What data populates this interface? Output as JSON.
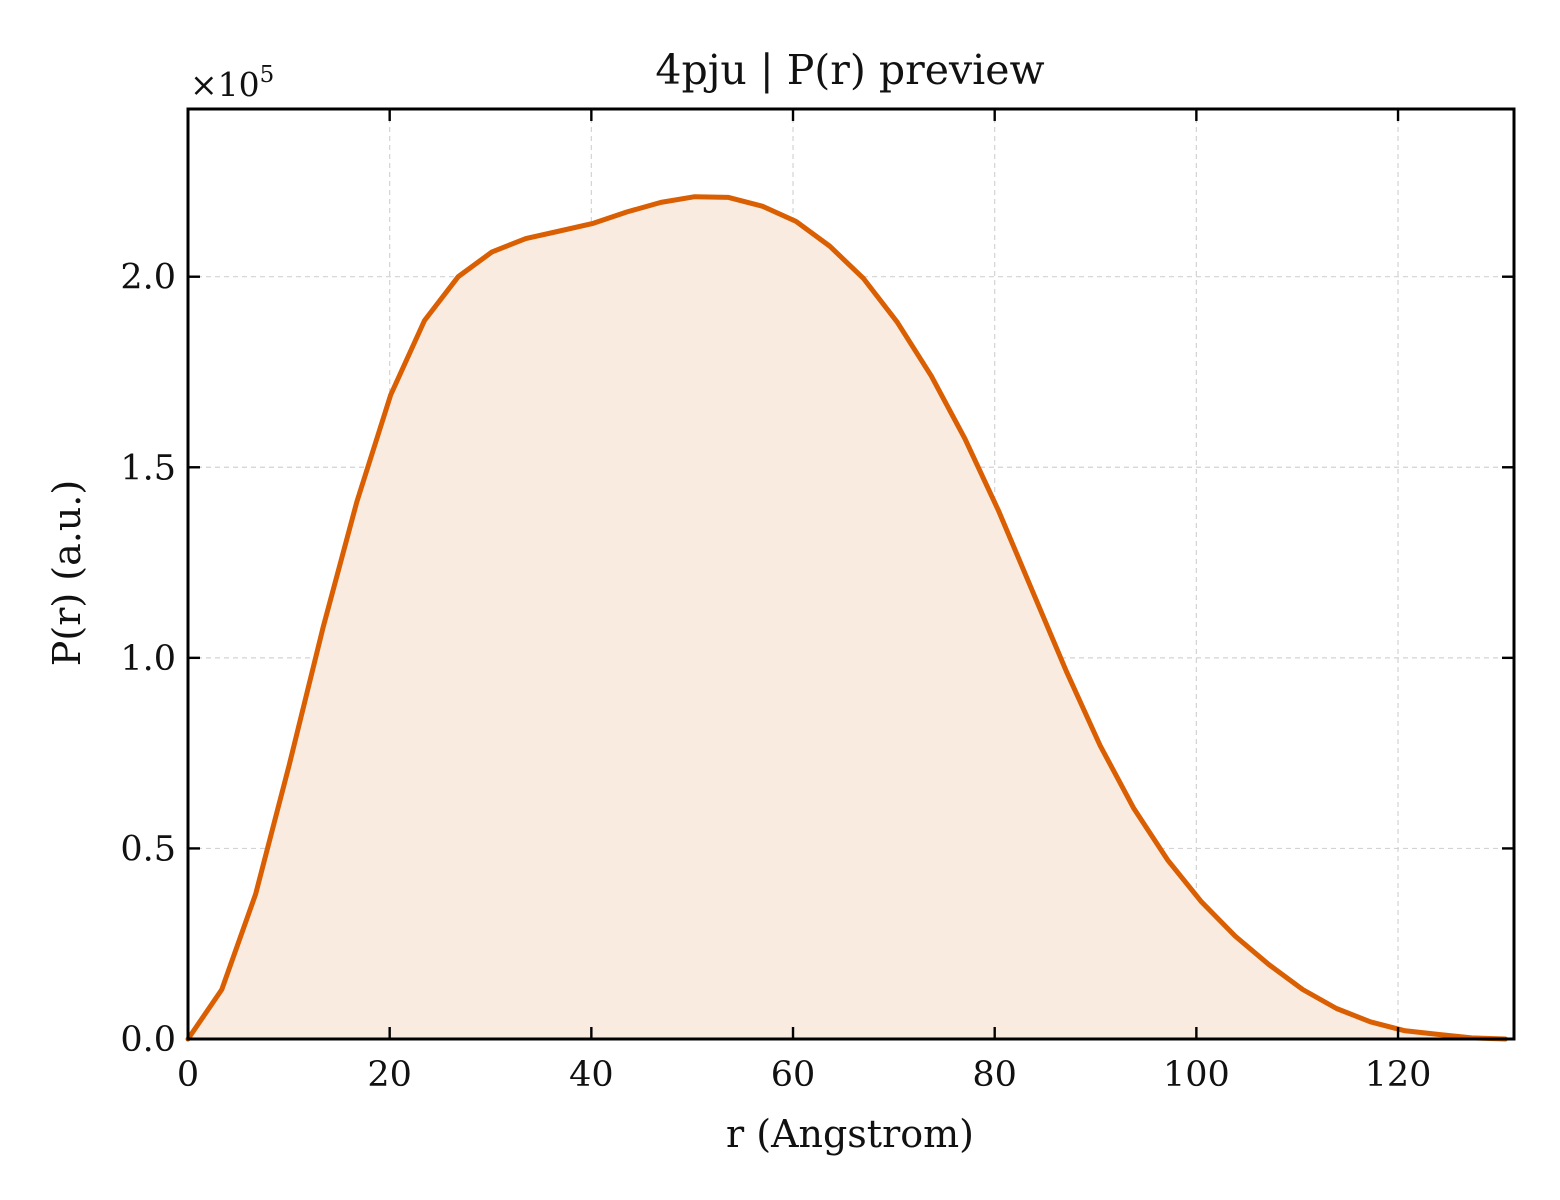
{
  "chart_data": {
    "type": "area",
    "title": "4pju | P(r) preview",
    "xlabel": "r (Angstrom)",
    "ylabel": "P(r) (a.u.)",
    "y_multiplier_label": "×10",
    "y_multiplier_exponent": "5",
    "xlim": [
      0,
      131.5
    ],
    "ylim": [
      0,
      2.44
    ],
    "y_scale_factor": 100000,
    "x_ticks": [
      0,
      20,
      40,
      60,
      80,
      100,
      120
    ],
    "y_ticks": [
      0.0,
      0.5,
      1.0,
      1.5,
      2.0
    ],
    "x_tick_labels": [
      "0",
      "20",
      "40",
      "60",
      "80",
      "100",
      "120"
    ],
    "y_tick_labels": [
      "0.0",
      "0.5",
      "1.0",
      "1.5",
      "2.0"
    ],
    "grid": true,
    "series": [
      {
        "color": "#d95f02",
        "fill_color": "#f9ebe0",
        "x": [
          0,
          3.35,
          6.7,
          10.05,
          13.4,
          16.75,
          20.1,
          23.45,
          26.8,
          30.15,
          33.5,
          36.85,
          40.2,
          43.55,
          46.9,
          50.25,
          53.6,
          56.95,
          60.3,
          63.65,
          67.0,
          70.35,
          73.7,
          77.05,
          80.4,
          83.75,
          87.1,
          90.45,
          93.8,
          97.15,
          100.5,
          103.85,
          107.2,
          110.55,
          113.9,
          117.25,
          120.6,
          123.95,
          127.3,
          130.65
        ],
        "y": [
          0.0,
          0.13,
          0.38,
          0.72,
          1.08,
          1.41,
          1.69,
          1.885,
          2.0,
          2.065,
          2.1,
          2.12,
          2.14,
          2.17,
          2.195,
          2.21,
          2.208,
          2.185,
          2.145,
          2.08,
          1.995,
          1.88,
          1.74,
          1.575,
          1.385,
          1.175,
          0.965,
          0.77,
          0.605,
          0.47,
          0.36,
          0.27,
          0.195,
          0.13,
          0.08,
          0.045,
          0.022,
          0.012,
          0.003,
          0.0
        ]
      }
    ]
  }
}
